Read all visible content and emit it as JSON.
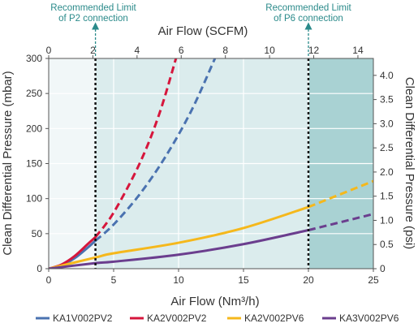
{
  "chart_data": {
    "type": "line",
    "x_bottom": {
      "label": "Air Flow (Nm³/h)",
      "ticks": [
        0,
        5,
        10,
        15,
        20,
        25
      ],
      "range": [
        0,
        25
      ]
    },
    "x_top": {
      "label": "Air Flow (SCFM)",
      "ticks": [
        0,
        2,
        4,
        6,
        8,
        10,
        12,
        14
      ],
      "range": [
        0,
        14.7
      ]
    },
    "y_left": {
      "label": "Clean Differential Pressure (mbar)",
      "ticks": [
        0,
        50,
        100,
        150,
        200,
        250,
        300
      ],
      "range": [
        0,
        300
      ]
    },
    "y_right": {
      "label": "Clean Differential Pressure (psi)",
      "ticks": [
        "0",
        "0.5",
        "1.0",
        "1.5",
        "2.0",
        "2.5",
        "3.0",
        "3.5",
        "4.0"
      ],
      "range": [
        0,
        4.35
      ]
    },
    "grid": true,
    "legend_position": "bottom",
    "limits": [
      {
        "label": [
          "Recommended Limit",
          "of P2 connection"
        ],
        "x": 3.6
      },
      {
        "label": [
          "Recommended Limit",
          "of P6 connection"
        ],
        "x": 20
      }
    ],
    "series": [
      {
        "name": "KA1V002PV2",
        "color": "#4a72b0",
        "solid_until": 3.6,
        "x": [
          0,
          1,
          2,
          3,
          3.6,
          5,
          7,
          9,
          11,
          12.8
        ],
        "y": [
          0,
          5,
          15,
          30,
          40,
          63,
          106,
          160,
          226,
          300
        ]
      },
      {
        "name": "KA2V002PV2",
        "color": "#d6163c",
        "solid_until": 3.6,
        "x": [
          0,
          1,
          2,
          3,
          3.6,
          5,
          7,
          8.5,
          9.8
        ],
        "y": [
          0,
          6,
          18,
          35,
          45,
          80,
          150,
          220,
          300
        ]
      },
      {
        "name": "KA2V002PV6",
        "color": "#f5b81c",
        "solid_until": 20,
        "x": [
          0,
          3.6,
          5,
          10,
          15,
          20,
          25
        ],
        "y": [
          0,
          16,
          22,
          37,
          58,
          88,
          125
        ]
      },
      {
        "name": "KA3V002PV6",
        "color": "#6b3e8e",
        "solid_until": 20,
        "x": [
          0,
          3.6,
          5,
          10,
          15,
          20,
          25
        ],
        "y": [
          0,
          8,
          10,
          20,
          35,
          55,
          78
        ]
      }
    ]
  },
  "colors": {
    "region_before_p2": "#f1f7f8",
    "region_p2_p6": "#dbeced",
    "region_after_p6": "#a9d2d3",
    "limit_note": "#2a8a8a"
  }
}
